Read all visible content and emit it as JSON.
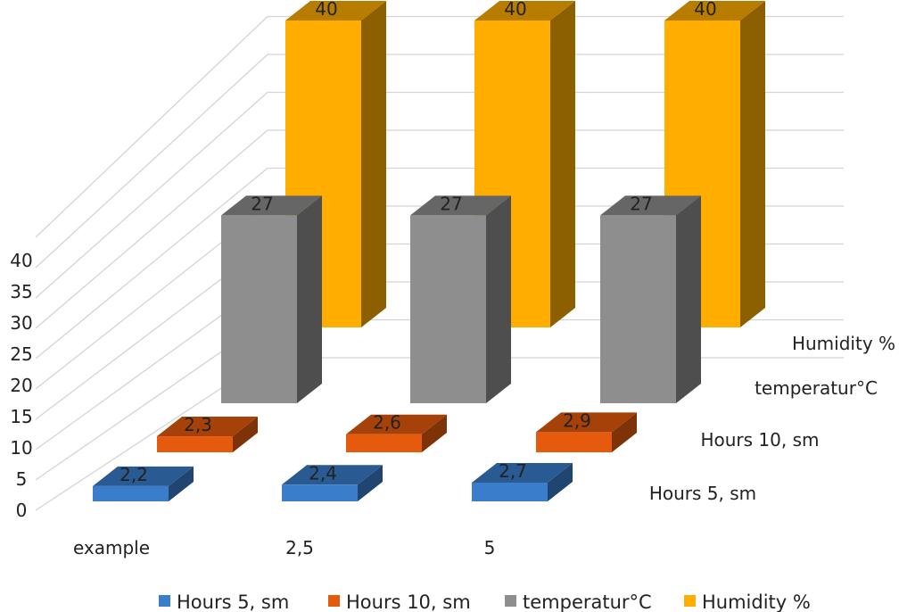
{
  "chart_data": {
    "type": "bar",
    "categories": [
      "example",
      "2,5",
      "5"
    ],
    "series": [
      {
        "name": "Hours 5, sm",
        "values": [
          2.2,
          2.4,
          2.7
        ],
        "labels": [
          "2,2",
          "2,4",
          "2,7"
        ],
        "color": "#3A7DCB"
      },
      {
        "name": "Hours 10, sm",
        "values": [
          2.3,
          2.6,
          2.9
        ],
        "labels": [
          "2,3",
          "2,6",
          "2,9"
        ],
        "color": "#E55A0C"
      },
      {
        "name": "temperatur°C",
        "values": [
          27,
          27,
          27
        ],
        "labels": [
          "27",
          "27",
          "27"
        ],
        "color": "#8E8E8E"
      },
      {
        "name": "Humidity %",
        "values": [
          40,
          40,
          40
        ],
        "labels": [
          "40",
          "40",
          "40"
        ],
        "color": "#FFAE00"
      }
    ],
    "yticks": [
      "0",
      "5",
      "10",
      "15",
      "20",
      "25",
      "30",
      "35",
      "40"
    ],
    "ylim": [
      0,
      45
    ],
    "grid": true,
    "legend_position": "bottom",
    "three_d": true
  }
}
